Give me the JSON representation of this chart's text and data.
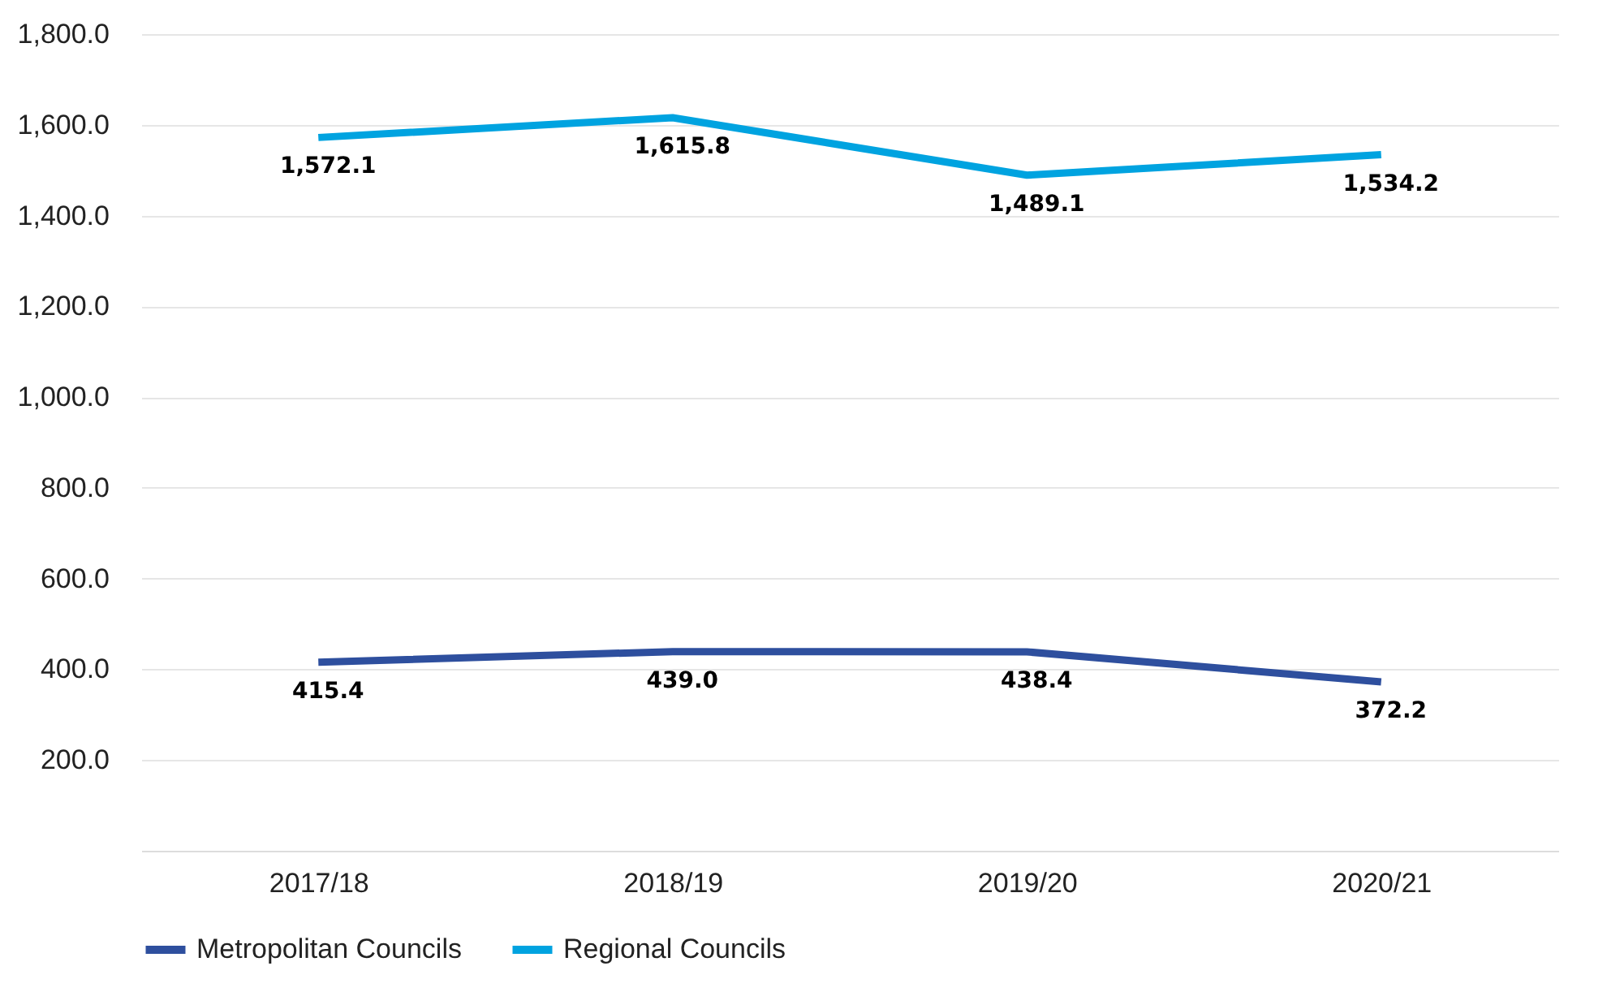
{
  "chart_data": {
    "type": "line",
    "categories": [
      "2017/18",
      "2018/19",
      "2019/20",
      "2020/21"
    ],
    "series": [
      {
        "name": "Metropolitan Councils",
        "color": "#2e4f9e",
        "values": [
          415.4,
          439.0,
          438.4,
          372.2
        ],
        "value_labels": [
          "415.4",
          "439.0",
          "438.4",
          "372.2"
        ]
      },
      {
        "name": "Regional Councils",
        "color": "#00a3e0",
        "values": [
          1572.1,
          1615.8,
          1489.1,
          1534.2
        ],
        "value_labels": [
          "1,572.1",
          "1,615.8",
          "1,489.1",
          "1,534.2"
        ]
      }
    ],
    "ylim": [
      0,
      1800
    ],
    "yticks": [
      {
        "value": 200,
        "label": "200.0"
      },
      {
        "value": 400,
        "label": "400.0"
      },
      {
        "value": 600,
        "label": "600.0"
      },
      {
        "value": 800,
        "label": "800.0"
      },
      {
        "value": 1000,
        "label": "1,000.0"
      },
      {
        "value": 1200,
        "label": "1,200.0"
      },
      {
        "value": 1400,
        "label": "1,400.0"
      },
      {
        "value": 1600,
        "label": "1,600.0"
      },
      {
        "value": 1800,
        "label": "1,800.0"
      }
    ],
    "grid": "y",
    "legend": "bottom",
    "marker": "none",
    "line_style": "solid"
  }
}
